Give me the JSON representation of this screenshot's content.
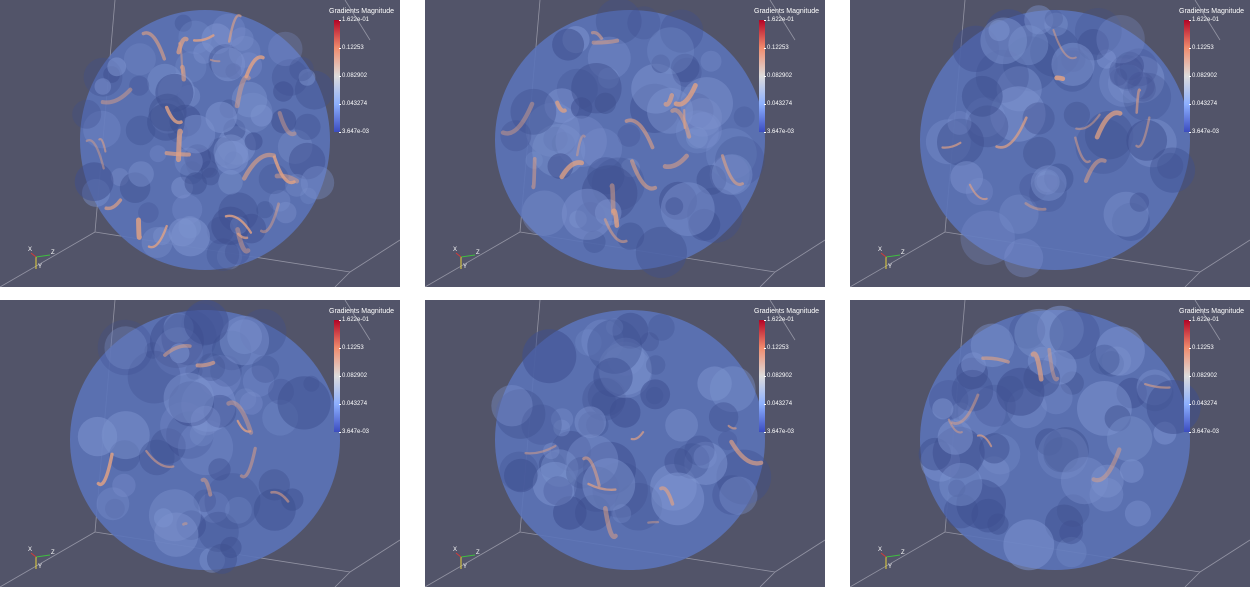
{
  "panels": [
    {
      "legend": {
        "title": "Gradients Magnitude",
        "ticks": [
          "1.622e-01",
          "0.12253",
          "0.082902",
          "0.043274",
          "3.647e-03"
        ]
      },
      "axes": {
        "x": "X",
        "y": "Y",
        "z": "Z"
      },
      "orange_level": 0.55
    },
    {
      "legend": {
        "title": "Gradients Magnitude",
        "ticks": [
          "1.622e-01",
          "0.12253",
          "0.082902",
          "0.043274",
          "3.647e-03"
        ]
      },
      "axes": {
        "x": "X",
        "y": "Y",
        "z": "Z"
      },
      "orange_level": 0.35
    },
    {
      "legend": {
        "title": "Gradients Magnitude",
        "ticks": [
          "1.622e-01",
          "0.12253",
          "0.082902",
          "0.043274",
          "3.647e-03"
        ]
      },
      "axes": {
        "x": "X",
        "y": "Y",
        "z": "Z"
      },
      "orange_level": 0.2
    },
    {
      "legend": {
        "title": "Gradients Magnitude",
        "ticks": [
          "1.622e-01",
          "0.12253",
          "0.082902",
          "0.043274",
          "3.647e-03"
        ]
      },
      "axes": {
        "x": "X",
        "y": "Y",
        "z": "Z"
      },
      "orange_level": 0.15
    },
    {
      "legend": {
        "title": "Gradients Magnitude",
        "ticks": [
          "1.622e-01",
          "0.12253",
          "0.082902",
          "0.043274",
          "3.647e-03"
        ]
      },
      "axes": {
        "x": "X",
        "y": "Y",
        "z": "Z"
      },
      "orange_level": 0.12
    },
    {
      "legend": {
        "title": "Gradients Magnitude",
        "ticks": [
          "1.622e-01",
          "0.12253",
          "0.082902",
          "0.043274",
          "3.647e-03"
        ]
      },
      "axes": {
        "x": "X",
        "y": "Y",
        "z": "Z"
      },
      "orange_level": 0.1
    }
  ],
  "colors": {
    "background": "#525469",
    "volume_blue": "#5b73b8",
    "volume_dark": "#3e4f8f",
    "highlight_orange": "#e0a184",
    "colormap_top": "#b40426",
    "colormap_bottom": "#3b4cc0"
  }
}
